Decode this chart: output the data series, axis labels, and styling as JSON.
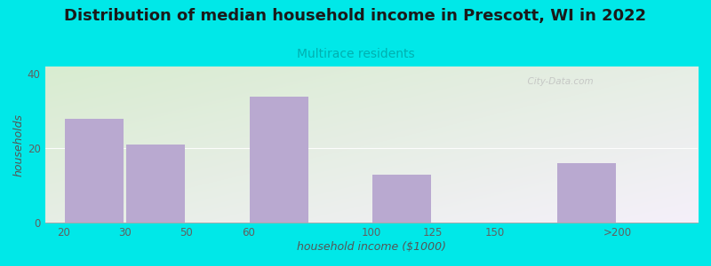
{
  "title": "Distribution of median household income in Prescott, WI in 2022",
  "subtitle": "Multirace residents",
  "xlabel": "household income ($1000)",
  "ylabel": "households",
  "tick_labels": [
    "20",
    "30",
    "50",
    "60",
    "100",
    "125",
    "150",
    ">200"
  ],
  "tick_positions": [
    0,
    1,
    2,
    3,
    5,
    6,
    7,
    9
  ],
  "bar_lefts": [
    0,
    1,
    3,
    5,
    6,
    8
  ],
  "bar_widths": [
    1,
    1,
    1,
    1,
    1,
    1
  ],
  "bar_values": [
    28,
    21,
    34,
    13,
    0,
    16
  ],
  "bar_colors": [
    "#b9a9d0",
    "#b9a9d0",
    "#b9a9d0",
    "#b9a9d0",
    "#b9a9d0",
    "#b9a9d0"
  ],
  "ylim": [
    0,
    42
  ],
  "xlim": [
    -0.3,
    10.3
  ],
  "yticks": [
    0,
    20,
    40
  ],
  "background_outer": "#00e8e8",
  "background_plot_topleft": "#d8ecd0",
  "background_plot_botright": "#f5f0fa",
  "title_fontsize": 13,
  "subtitle_fontsize": 10,
  "subtitle_color": "#00b0b0",
  "axis_label_color": "#555555",
  "tick_label_color": "#606060",
  "watermark": "  City-Data.com"
}
